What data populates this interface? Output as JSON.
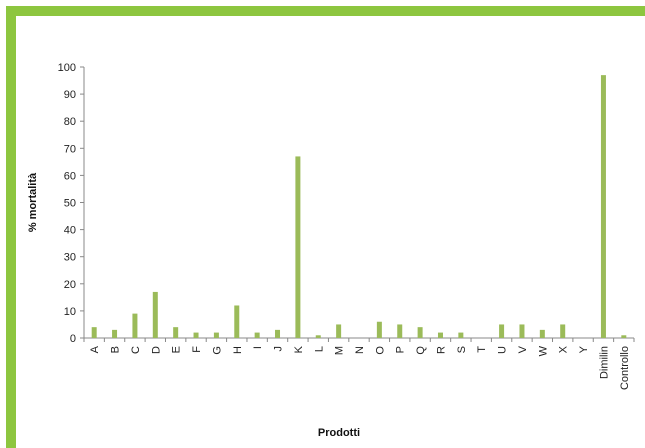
{
  "colors": {
    "frame": "#8dc63f",
    "bar": "#9bbb59",
    "axis": "#888888"
  },
  "chart_data": {
    "type": "bar",
    "ylabel": "% mortalità",
    "xlabel": "Prodotti",
    "ylim": [
      0,
      100
    ],
    "yticks": [
      0,
      10,
      20,
      30,
      40,
      50,
      60,
      70,
      80,
      90,
      100
    ],
    "categories": [
      "A",
      "B",
      "C",
      "D",
      "E",
      "F",
      "G",
      "H",
      "I",
      "J",
      "K",
      "L",
      "M",
      "N",
      "O",
      "P",
      "Q",
      "R",
      "S",
      "T",
      "U",
      "V",
      "W",
      "X",
      "Y",
      "Dimilin",
      "Controllo"
    ],
    "values": [
      4,
      3,
      9,
      17,
      4,
      2,
      2,
      12,
      2,
      3,
      67,
      1,
      5,
      0,
      6,
      5,
      4,
      2,
      2,
      0,
      5,
      5,
      3,
      5,
      0,
      97,
      1
    ],
    "grid": false,
    "legend": "none"
  }
}
